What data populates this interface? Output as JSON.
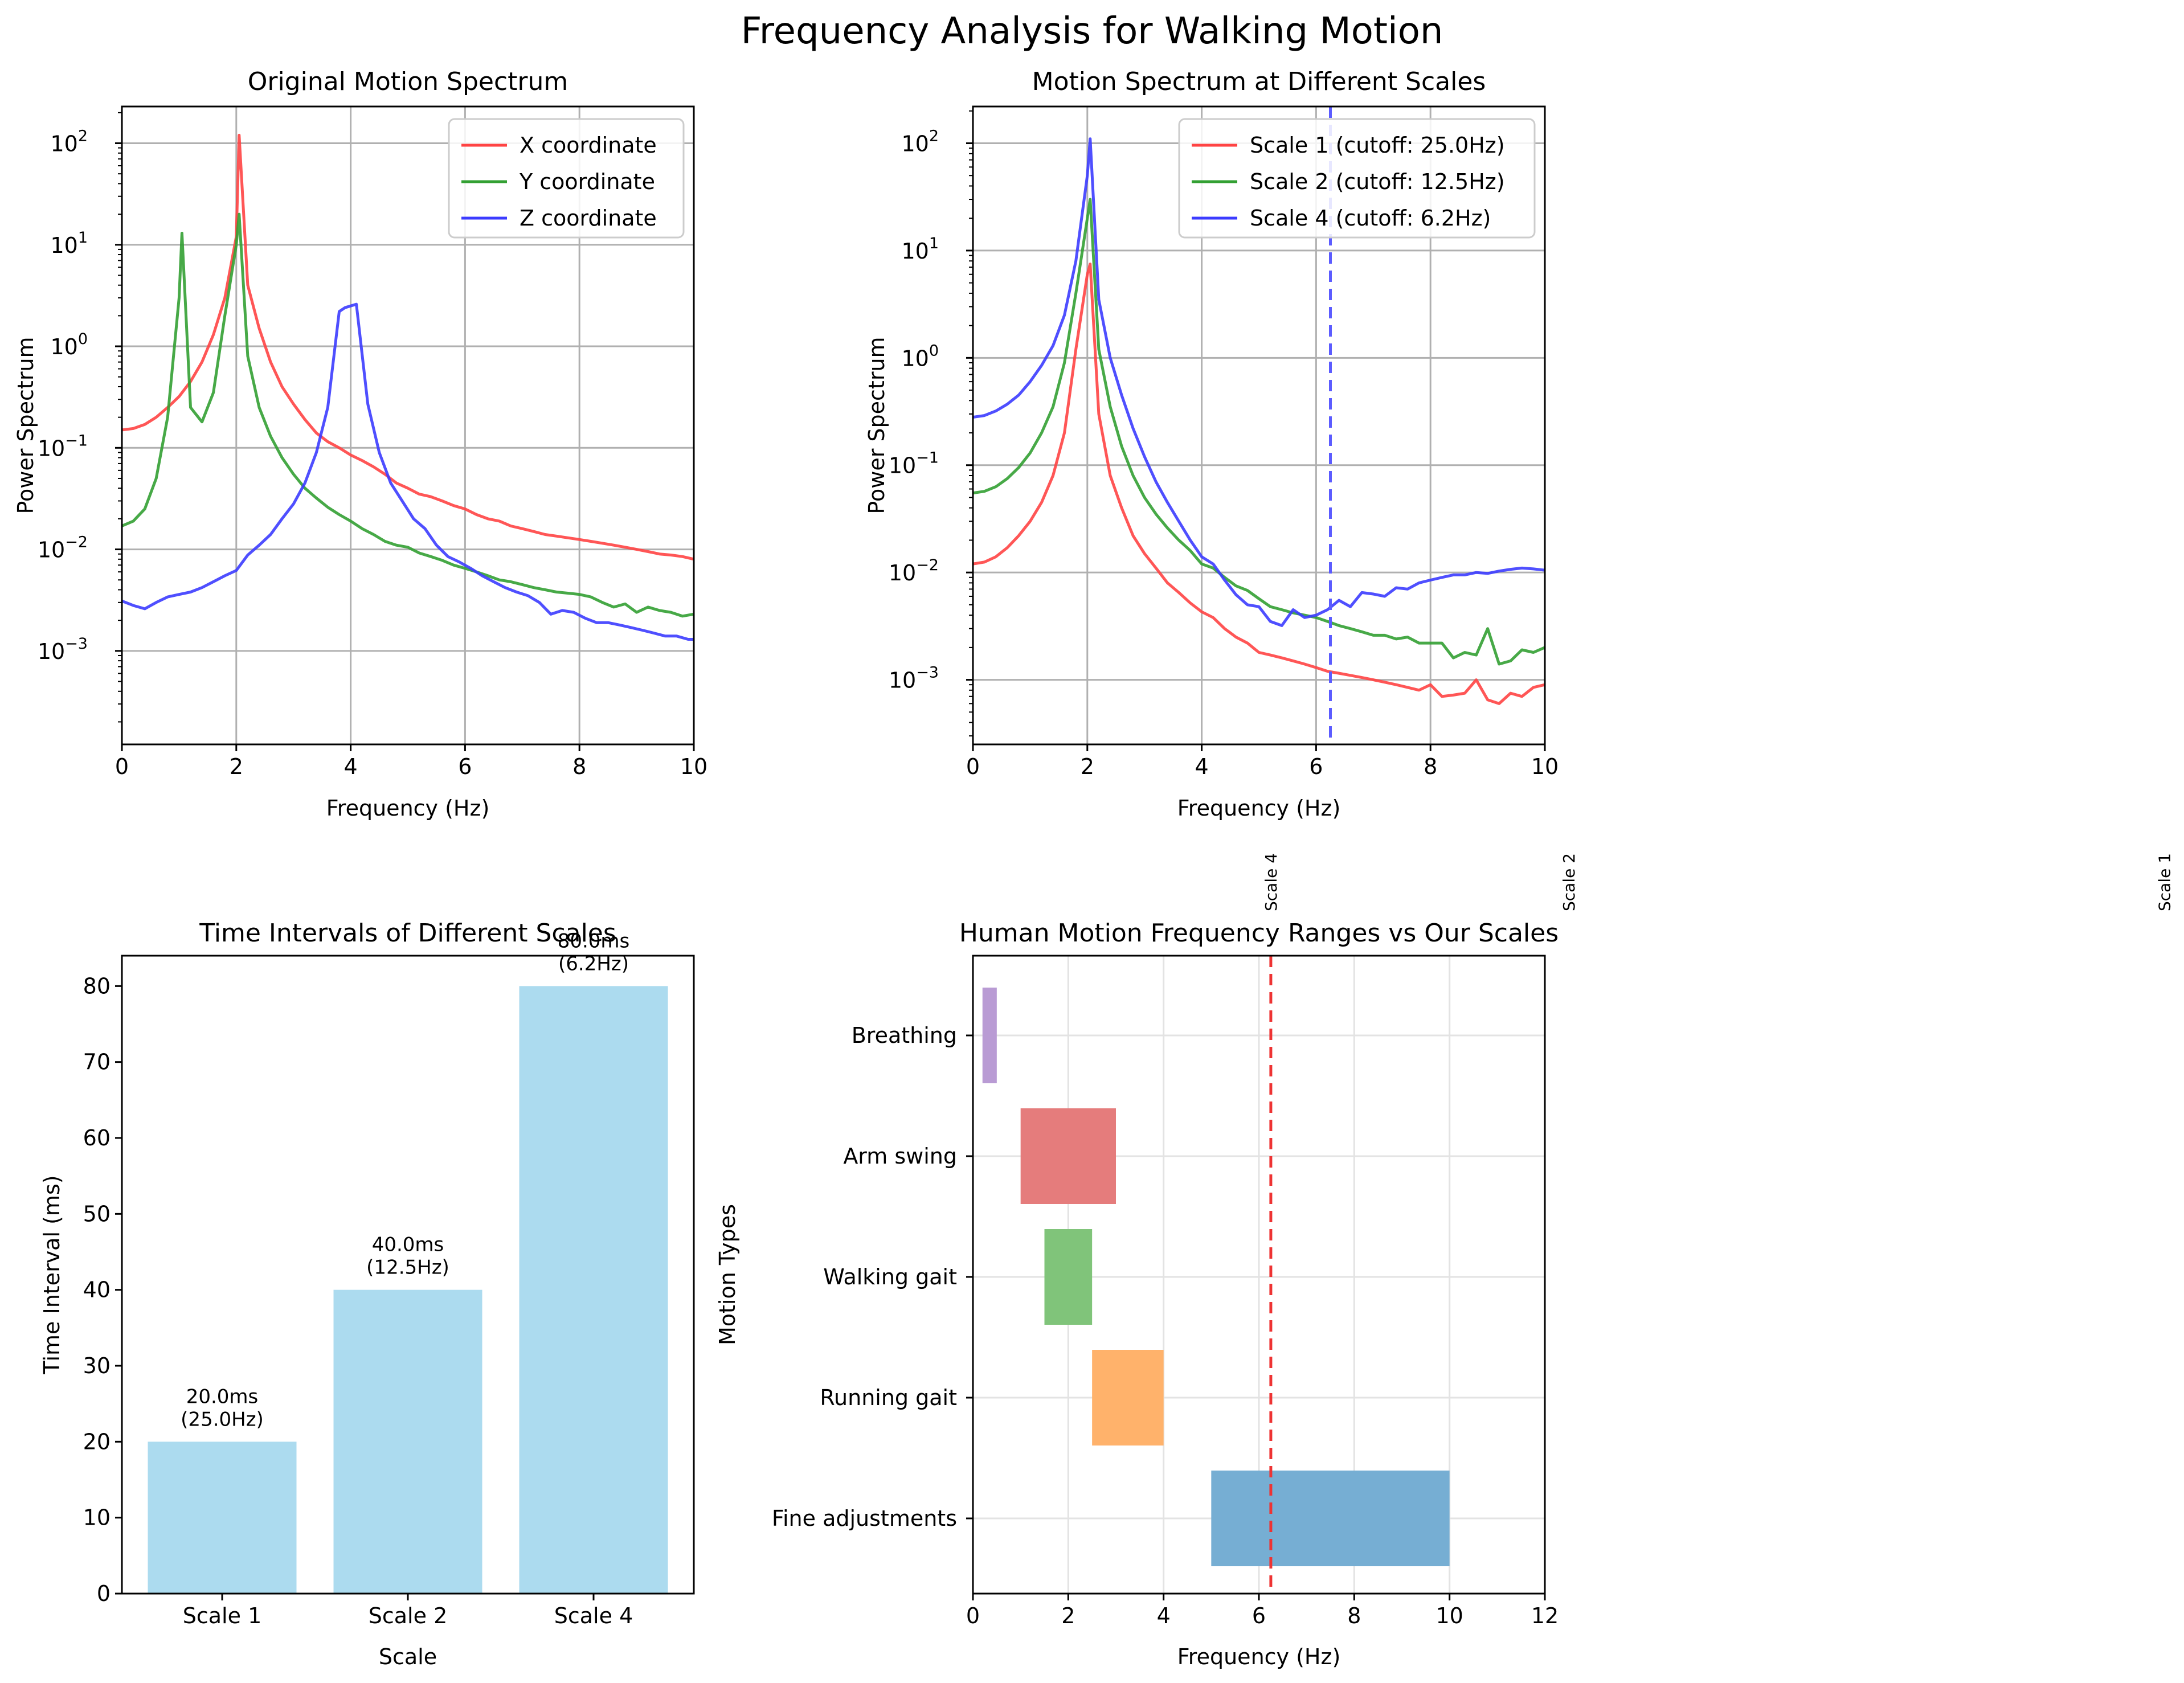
{
  "figure": {
    "title": "Frequency Analysis for Walking Motion"
  },
  "chart_data": [
    {
      "type": "line",
      "title": "Original Motion Spectrum",
      "xlabel": "Frequency (Hz)",
      "ylabel": "Power Spectrum",
      "xlim": [
        0,
        10
      ],
      "ylim": [
        0.00012,
        230
      ],
      "yscale": "log",
      "grid": true,
      "legend_position": "top-right",
      "x_ticks": [
        "0",
        "2",
        "4",
        "6",
        "8",
        "10"
      ],
      "y_ticks": [
        "10",
        "10",
        "10",
        "10",
        "10",
        "10"
      ],
      "y_tick_exponents": [
        "−3",
        "−2",
        "−1",
        "0",
        "1",
        "2"
      ],
      "series": [
        {
          "name": "X coordinate",
          "color": "#ff4444",
          "x": [
            0,
            0.2,
            0.4,
            0.6,
            0.8,
            1.0,
            1.2,
            1.4,
            1.6,
            1.8,
            2.0,
            2.05,
            2.2,
            2.4,
            2.6,
            2.8,
            3.0,
            3.2,
            3.4,
            3.6,
            3.8,
            4.0,
            4.2,
            4.4,
            4.6,
            4.8,
            5.0,
            5.2,
            5.4,
            5.6,
            5.8,
            6.0,
            6.2,
            6.4,
            6.6,
            6.8,
            7.0,
            7.2,
            7.4,
            7.6,
            7.8,
            8.0,
            8.2,
            8.4,
            8.6,
            8.8,
            9.0,
            9.2,
            9.4,
            9.6,
            9.8,
            10.0
          ],
          "y": [
            0.15,
            0.155,
            0.17,
            0.2,
            0.25,
            0.32,
            0.45,
            0.7,
            1.3,
            3,
            12,
            120,
            4,
            1.5,
            0.7,
            0.4,
            0.27,
            0.19,
            0.14,
            0.115,
            0.1,
            0.085,
            0.075,
            0.065,
            0.055,
            0.045,
            0.04,
            0.035,
            0.033,
            0.03,
            0.027,
            0.025,
            0.022,
            0.02,
            0.019,
            0.017,
            0.016,
            0.015,
            0.014,
            0.0135,
            0.013,
            0.0125,
            0.012,
            0.0115,
            0.011,
            0.0105,
            0.01,
            0.0095,
            0.009,
            0.0088,
            0.0085,
            0.008
          ]
        },
        {
          "name": "Y coordinate",
          "color": "#33a033",
          "x": [
            0,
            0.2,
            0.4,
            0.6,
            0.8,
            1.0,
            1.05,
            1.2,
            1.4,
            1.6,
            1.8,
            2.0,
            2.05,
            2.2,
            2.4,
            2.6,
            2.8,
            3.0,
            3.2,
            3.4,
            3.6,
            3.8,
            4.0,
            4.2,
            4.4,
            4.6,
            4.8,
            5.0,
            5.2,
            5.4,
            5.6,
            5.8,
            6.0,
            6.2,
            6.4,
            6.6,
            6.8,
            7.0,
            7.2,
            7.4,
            7.6,
            7.8,
            8.0,
            8.2,
            8.4,
            8.6,
            8.8,
            9.0,
            9.2,
            9.4,
            9.6,
            9.8,
            10.0
          ],
          "y": [
            0.017,
            0.019,
            0.025,
            0.05,
            0.2,
            3,
            13,
            0.25,
            0.18,
            0.35,
            2,
            10,
            20,
            0.8,
            0.25,
            0.13,
            0.08,
            0.055,
            0.04,
            0.032,
            0.026,
            0.022,
            0.019,
            0.016,
            0.014,
            0.012,
            0.011,
            0.0105,
            0.0092,
            0.0085,
            0.0078,
            0.007,
            0.0065,
            0.006,
            0.0055,
            0.005,
            0.0048,
            0.0045,
            0.0042,
            0.004,
            0.0038,
            0.0037,
            0.0036,
            0.0034,
            0.003,
            0.0027,
            0.0029,
            0.0024,
            0.0027,
            0.0025,
            0.0024,
            0.0022,
            0.0023
          ]
        },
        {
          "name": "Z coordinate",
          "color": "#3c3cff",
          "x": [
            0,
            0.2,
            0.4,
            0.6,
            0.8,
            1.0,
            1.2,
            1.4,
            1.6,
            1.8,
            2.0,
            2.2,
            2.4,
            2.6,
            2.8,
            3.0,
            3.2,
            3.4,
            3.6,
            3.8,
            3.9,
            4.1,
            4.3,
            4.5,
            4.7,
            4.9,
            5.1,
            5.3,
            5.5,
            5.7,
            5.9,
            6.1,
            6.3,
            6.5,
            6.7,
            6.9,
            7.1,
            7.3,
            7.5,
            7.7,
            7.9,
            8.1,
            8.3,
            8.5,
            8.7,
            8.9,
            9.1,
            9.3,
            9.5,
            9.7,
            9.9,
            10.0
          ],
          "y": [
            0.0031,
            0.0028,
            0.0026,
            0.003,
            0.0034,
            0.0036,
            0.0038,
            0.0042,
            0.0048,
            0.0055,
            0.0062,
            0.0088,
            0.011,
            0.014,
            0.02,
            0.028,
            0.045,
            0.09,
            0.25,
            2.2,
            2.4,
            2.6,
            0.27,
            0.09,
            0.045,
            0.03,
            0.02,
            0.016,
            0.011,
            0.0085,
            0.0075,
            0.0065,
            0.0055,
            0.0048,
            0.0042,
            0.0038,
            0.0035,
            0.003,
            0.0023,
            0.0025,
            0.0024,
            0.0021,
            0.0019,
            0.0019,
            0.0018,
            0.0017,
            0.0016,
            0.0015,
            0.0014,
            0.0014,
            0.0013,
            0.0013
          ]
        }
      ]
    },
    {
      "type": "line",
      "title": "Motion Spectrum at Different Scales",
      "xlabel": "Frequency (Hz)",
      "ylabel": "Power Spectrum",
      "xlim": [
        0,
        10
      ],
      "ylim": [
        0.00025,
        220
      ],
      "yscale": "log",
      "grid": true,
      "legend_position": "top-right",
      "x_ticks": [
        "0",
        "2",
        "4",
        "6",
        "8",
        "10"
      ],
      "y_ticks": [
        "10",
        "10",
        "10",
        "10",
        "10",
        "10"
      ],
      "y_tick_exponents": [
        "−3",
        "−2",
        "−1",
        "0",
        "1",
        "2"
      ],
      "vline": {
        "x": 6.25,
        "color": "#5c5cff"
      },
      "series": [
        {
          "name": "Scale 1 (cutoff: 25.0Hz)",
          "color": "#ff4444",
          "x": [
            0,
            0.2,
            0.4,
            0.6,
            0.8,
            1.0,
            1.2,
            1.4,
            1.6,
            1.8,
            2.0,
            2.05,
            2.2,
            2.4,
            2.6,
            2.8,
            3.0,
            3.2,
            3.4,
            3.6,
            3.8,
            4.0,
            4.2,
            4.4,
            4.6,
            4.8,
            5.0,
            5.2,
            5.4,
            5.6,
            5.8,
            6.0,
            6.2,
            6.4,
            6.6,
            6.8,
            7.0,
            7.2,
            7.4,
            7.6,
            7.8,
            8.0,
            8.2,
            8.4,
            8.6,
            8.8,
            9.0,
            9.2,
            9.4,
            9.6,
            9.8,
            10.0
          ],
          "y": [
            0.012,
            0.0125,
            0.014,
            0.017,
            0.022,
            0.03,
            0.045,
            0.08,
            0.2,
            1.2,
            6,
            7.5,
            0.3,
            0.08,
            0.04,
            0.022,
            0.015,
            0.011,
            0.008,
            0.0065,
            0.0052,
            0.0043,
            0.0038,
            0.003,
            0.0025,
            0.0022,
            0.0018,
            0.0017,
            0.0016,
            0.0015,
            0.0014,
            0.0013,
            0.0012,
            0.00115,
            0.0011,
            0.00105,
            0.001,
            0.00095,
            0.0009,
            0.00085,
            0.0008,
            0.0009,
            0.0007,
            0.00072,
            0.00075,
            0.001,
            0.00065,
            0.0006,
            0.00075,
            0.0007,
            0.00085,
            0.0009
          ]
        },
        {
          "name": "Scale 2 (cutoff: 12.5Hz)",
          "color": "#33a033",
          "x": [
            0,
            0.2,
            0.4,
            0.6,
            0.8,
            1.0,
            1.2,
            1.4,
            1.6,
            1.8,
            2.0,
            2.05,
            2.2,
            2.4,
            2.6,
            2.8,
            3.0,
            3.2,
            3.4,
            3.6,
            3.8,
            4.0,
            4.2,
            4.4,
            4.6,
            4.8,
            5.0,
            5.2,
            5.4,
            5.6,
            5.8,
            6.0,
            6.2,
            6.4,
            6.6,
            6.8,
            7.0,
            7.2,
            7.4,
            7.6,
            7.8,
            8.0,
            8.2,
            8.4,
            8.6,
            8.8,
            9.0,
            9.2,
            9.4,
            9.6,
            9.8,
            10.0
          ],
          "y": [
            0.055,
            0.057,
            0.063,
            0.075,
            0.095,
            0.13,
            0.2,
            0.35,
            0.9,
            4,
            20,
            30,
            1.2,
            0.35,
            0.15,
            0.08,
            0.05,
            0.035,
            0.026,
            0.02,
            0.016,
            0.012,
            0.011,
            0.009,
            0.0075,
            0.0068,
            0.0057,
            0.0048,
            0.0045,
            0.0042,
            0.004,
            0.0038,
            0.0035,
            0.0032,
            0.003,
            0.0028,
            0.0026,
            0.0026,
            0.0024,
            0.0025,
            0.0022,
            0.0022,
            0.0022,
            0.0016,
            0.0018,
            0.0017,
            0.003,
            0.0014,
            0.0015,
            0.0019,
            0.0018,
            0.002
          ]
        },
        {
          "name": "Scale 4 (cutoff: 6.2Hz)",
          "color": "#3c3cff",
          "x": [
            0,
            0.2,
            0.4,
            0.6,
            0.8,
            1.0,
            1.2,
            1.4,
            1.6,
            1.8,
            2.0,
            2.05,
            2.2,
            2.4,
            2.6,
            2.8,
            3.0,
            3.2,
            3.4,
            3.6,
            3.8,
            4.0,
            4.2,
            4.4,
            4.6,
            4.8,
            5.0,
            5.2,
            5.4,
            5.6,
            5.8,
            6.0,
            6.2,
            6.4,
            6.6,
            6.8,
            7.0,
            7.2,
            7.4,
            7.6,
            7.8,
            8.0,
            8.2,
            8.4,
            8.6,
            8.8,
            9.0,
            9.2,
            9.4,
            9.6,
            9.8,
            10.0
          ],
          "y": [
            0.28,
            0.29,
            0.32,
            0.37,
            0.45,
            0.6,
            0.85,
            1.3,
            2.5,
            8,
            50,
            110,
            3.5,
            1,
            0.45,
            0.22,
            0.12,
            0.07,
            0.045,
            0.03,
            0.02,
            0.014,
            0.012,
            0.0085,
            0.0062,
            0.005,
            0.0048,
            0.0035,
            0.0032,
            0.0045,
            0.0038,
            0.004,
            0.0045,
            0.0055,
            0.0048,
            0.0065,
            0.0063,
            0.006,
            0.0072,
            0.007,
            0.008,
            0.0085,
            0.009,
            0.0095,
            0.0095,
            0.01,
            0.0098,
            0.0103,
            0.0107,
            0.011,
            0.0108,
            0.0105
          ]
        }
      ]
    },
    {
      "type": "bar",
      "title": "Time Intervals of Different Scales",
      "xlabel": "Scale",
      "ylabel": "Time Interval (ms)",
      "ylim": [
        0,
        84
      ],
      "grid": false,
      "color": "#a8d9ee",
      "categories": [
        "Scale 1",
        "Scale 2",
        "Scale 4"
      ],
      "values": [
        20,
        40,
        80
      ],
      "data_labels": [
        [
          "20.0ms",
          "(25.0Hz)"
        ],
        [
          "40.0ms",
          "(12.5Hz)"
        ],
        [
          "80.0ms",
          "(6.2Hz)"
        ]
      ],
      "y_ticks": [
        "0",
        "10",
        "20",
        "30",
        "40",
        "50",
        "60",
        "70",
        "80"
      ]
    },
    {
      "type": "bar",
      "orientation": "horizontal-range",
      "title": "Human Motion Frequency Ranges vs Our Scales",
      "xlabel": "Frequency (Hz)",
      "ylabel": "Motion Types",
      "xlim": [
        0,
        12
      ],
      "grid": true,
      "x_ticks": [
        "0",
        "2",
        "4",
        "6",
        "8",
        "10",
        "12"
      ],
      "categories": [
        "Breathing",
        "Arm swing",
        "Walking gait",
        "Running gait",
        "Fine adjustments"
      ],
      "ranges": [
        {
          "label": "Breathing",
          "start": 0.2,
          "end": 0.5,
          "color": "#b99bd4"
        },
        {
          "label": "Arm swing",
          "start": 1.0,
          "end": 3.0,
          "color": "#e57c7c"
        },
        {
          "label": "Walking gait",
          "start": 1.5,
          "end": 2.5,
          "color": "#80c47a"
        },
        {
          "label": "Running gait",
          "start": 2.5,
          "end": 4.0,
          "color": "#ffb26b"
        },
        {
          "label": "Fine adjustments",
          "start": 5.0,
          "end": 10.0,
          "color": "#76aed3"
        }
      ],
      "scale_markers": [
        {
          "label": "Scale 4",
          "x": 6.25
        },
        {
          "label": "Scale 2",
          "x": 12.5
        },
        {
          "label": "Scale 1",
          "x": 25.0
        }
      ],
      "vline": {
        "x": 6.25,
        "color": "#ee3333"
      }
    }
  ]
}
